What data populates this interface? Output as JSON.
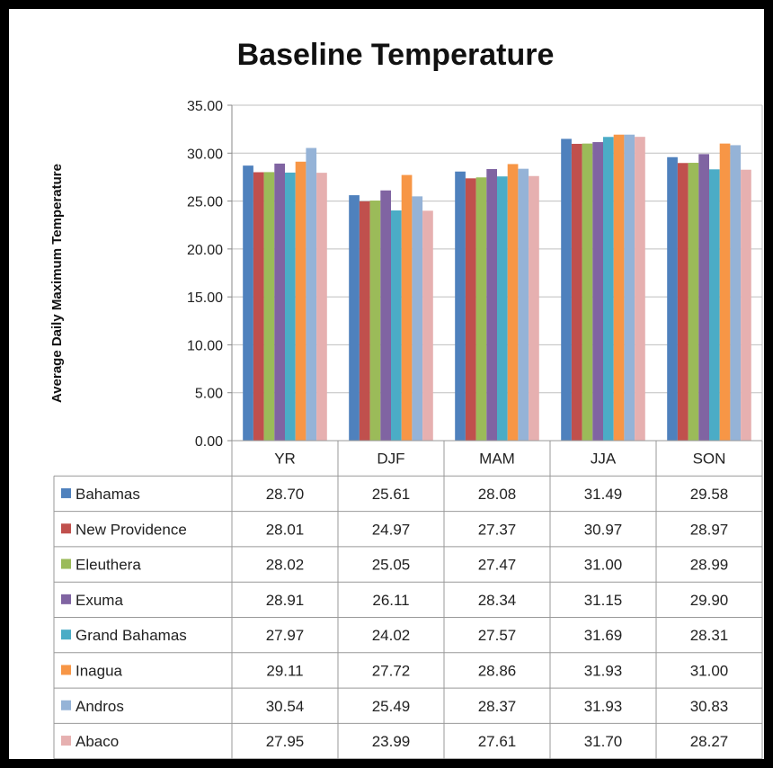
{
  "chart_data": {
    "type": "bar",
    "title": "Baseline Temperature",
    "ylabel": "Average Daily Maximum Temperature",
    "xlabel": "",
    "ylim": [
      0,
      35
    ],
    "y_ticks": [
      "0.00",
      "5.00",
      "10.00",
      "15.00",
      "20.00",
      "25.00",
      "30.00",
      "35.00"
    ],
    "grid": "horizontal",
    "legend": "data-table-below",
    "categories": [
      "YR",
      "DJF",
      "MAM",
      "JJA",
      "SON"
    ],
    "series": [
      {
        "name": "Bahamas",
        "color": "#4f81bd",
        "values": [
          28.7,
          25.61,
          28.08,
          31.49,
          29.58
        ],
        "labels": [
          "28.70",
          "25.61",
          "28.08",
          "31.49",
          "29.58"
        ]
      },
      {
        "name": "New Providence",
        "color": "#c0504d",
        "values": [
          28.01,
          24.97,
          27.37,
          30.97,
          28.97
        ],
        "labels": [
          "28.01",
          "24.97",
          "27.37",
          "30.97",
          "28.97"
        ]
      },
      {
        "name": "Eleuthera",
        "color": "#9bbb59",
        "values": [
          28.02,
          25.05,
          27.47,
          31.0,
          28.99
        ],
        "labels": [
          "28.02",
          "25.05",
          "27.47",
          "31.00",
          "28.99"
        ]
      },
      {
        "name": "Exuma",
        "color": "#8064a2",
        "values": [
          28.91,
          26.11,
          28.34,
          31.15,
          29.9
        ],
        "labels": [
          "28.91",
          "26.11",
          "28.34",
          "31.15",
          "29.90"
        ]
      },
      {
        "name": "Grand Bahamas",
        "color": "#4bacc6",
        "values": [
          27.97,
          24.02,
          27.57,
          31.69,
          28.31
        ],
        "labels": [
          "27.97",
          "24.02",
          "27.57",
          "31.69",
          "28.31"
        ]
      },
      {
        "name": "Inagua",
        "color": "#f79646",
        "values": [
          29.11,
          27.72,
          28.86,
          31.93,
          31.0
        ],
        "labels": [
          "29.11",
          "27.72",
          "28.86",
          "31.93",
          "31.00"
        ]
      },
      {
        "name": "Andros",
        "color": "#95b3d7",
        "values": [
          30.54,
          25.49,
          28.37,
          31.93,
          30.83
        ],
        "labels": [
          "30.54",
          "25.49",
          "28.37",
          "31.93",
          "30.83"
        ]
      },
      {
        "name": "Abaco",
        "color": "#e6b0b0",
        "values": [
          27.95,
          23.99,
          27.61,
          31.7,
          28.27
        ],
        "labels": [
          "27.95",
          "23.99",
          "27.61",
          "31.70",
          "28.27"
        ]
      }
    ]
  }
}
